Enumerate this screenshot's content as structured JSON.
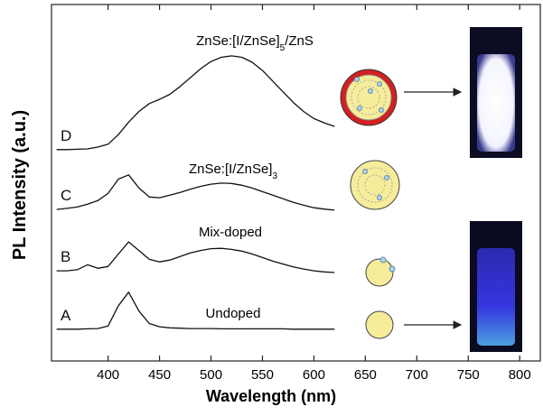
{
  "chart_data": {
    "type": "line",
    "xlabel": "Wavelength (nm)",
    "ylabel": "PL Intensity (a.u.)",
    "xlim": [
      345,
      820
    ],
    "xticks": [
      400,
      450,
      500,
      550,
      600,
      650,
      700,
      750,
      800
    ],
    "ylim": [
      0,
      100
    ],
    "x": [
      350,
      360,
      370,
      380,
      390,
      400,
      410,
      420,
      430,
      440,
      450,
      460,
      470,
      480,
      490,
      500,
      510,
      520,
      530,
      540,
      550,
      560,
      570,
      580,
      590,
      600,
      610,
      620
    ],
    "series": [
      {
        "name": "A",
        "color": "#111111",
        "values": [
          8.9,
          8.9,
          8.9,
          9.0,
          9.1,
          9.8,
          15.5,
          19.3,
          14.0,
          10.5,
          9.6,
          9.3,
          9.2,
          9.1,
          9.1,
          9.1,
          9.0,
          9.0,
          9.0,
          9.0,
          9.0,
          9.0,
          9.0,
          8.9,
          8.9,
          8.9,
          8.9,
          8.9
        ]
      },
      {
        "name": "B",
        "color": "#111111",
        "values": [
          25.3,
          25.3,
          25.6,
          27.0,
          26.0,
          26.5,
          30.0,
          33.4,
          31.0,
          28.5,
          27.8,
          28.3,
          29.3,
          30.3,
          31.0,
          31.5,
          31.6,
          31.3,
          30.8,
          30.0,
          29.0,
          28.0,
          27.2,
          26.4,
          25.8,
          25.3,
          25.0,
          24.8
        ]
      },
      {
        "name": "C",
        "color": "#111111",
        "values": [
          42.5,
          42.8,
          43.2,
          44.0,
          45.0,
          47.0,
          51.0,
          52.2,
          48.5,
          46.0,
          45.8,
          46.5,
          47.3,
          48.2,
          49.0,
          49.6,
          49.9,
          49.8,
          49.3,
          48.5,
          47.5,
          46.5,
          45.5,
          44.5,
          43.7,
          43.0,
          42.6,
          42.3
        ]
      },
      {
        "name": "D",
        "color": "#111111",
        "values": [
          59.3,
          59.3,
          59.4,
          59.5,
          60.0,
          60.8,
          63.5,
          67.0,
          70.0,
          72.2,
          73.4,
          74.8,
          77.0,
          79.5,
          82.0,
          84.0,
          85.2,
          85.6,
          85.2,
          83.8,
          81.5,
          78.5,
          75.5,
          72.5,
          70.0,
          68.0,
          66.8,
          65.8
        ]
      }
    ],
    "annotations": [
      {
        "parts": [
          "Undoped"
        ]
      },
      {
        "parts": [
          "Mix-doped"
        ]
      },
      {
        "parts": [
          "ZnSe:[I/ZnSe]",
          "3"
        ]
      },
      {
        "parts": [
          "ZnSe:[I/ZnSe]",
          "5",
          "/ZnS"
        ]
      }
    ]
  }
}
